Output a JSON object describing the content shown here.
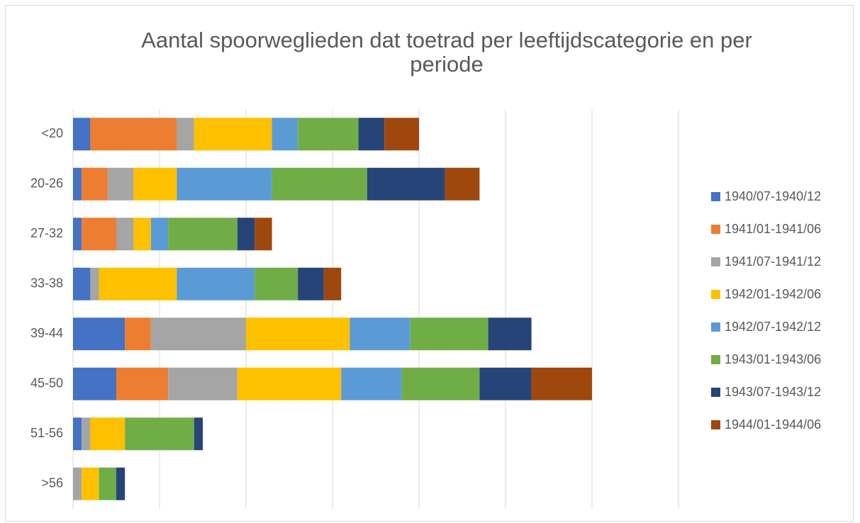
{
  "chart_data": {
    "type": "stacked_barh",
    "title": "Aantal spoorweglieden dat toetrad per leeftijdscategorie en per periode",
    "categories": [
      "<20",
      "20-26",
      "27-32",
      "33-38",
      "39-44",
      "45-50",
      "51-56",
      ">56"
    ],
    "series": [
      {
        "name": "1940/07-1940/12",
        "color": "#4472c4",
        "values": [
          2,
          1,
          1,
          2,
          6,
          5,
          1,
          0
        ]
      },
      {
        "name": "1941/01-1941/06",
        "color": "#ed7d31",
        "values": [
          10,
          3,
          4,
          0,
          3,
          6,
          0,
          0
        ]
      },
      {
        "name": "1941/07-1941/12",
        "color": "#a5a5a5",
        "values": [
          2,
          3,
          2,
          1,
          11,
          8,
          1,
          1
        ]
      },
      {
        "name": "1942/01-1942/06",
        "color": "#ffc000",
        "values": [
          9,
          5,
          2,
          9,
          12,
          12,
          4,
          2
        ]
      },
      {
        "name": "1942/07-1942/12",
        "color": "#5b9bd5",
        "values": [
          3,
          11,
          2,
          9,
          7,
          7,
          0,
          0
        ]
      },
      {
        "name": "1943/01-1943/06",
        "color": "#70ad47",
        "values": [
          7,
          11,
          8,
          5,
          9,
          9,
          8,
          2
        ]
      },
      {
        "name": "1943/07-1943/12",
        "color": "#264478",
        "values": [
          3,
          9,
          2,
          3,
          5,
          6,
          1,
          1
        ]
      },
      {
        "name": "1944/01-1944/06",
        "color": "#9e480e",
        "values": [
          4,
          4,
          2,
          2,
          0,
          7,
          0,
          0
        ]
      }
    ],
    "xlim": [
      0,
      70
    ],
    "xticks": [
      0,
      10,
      20,
      30,
      40,
      50,
      60,
      70
    ],
    "grid": true,
    "legend": "right"
  }
}
